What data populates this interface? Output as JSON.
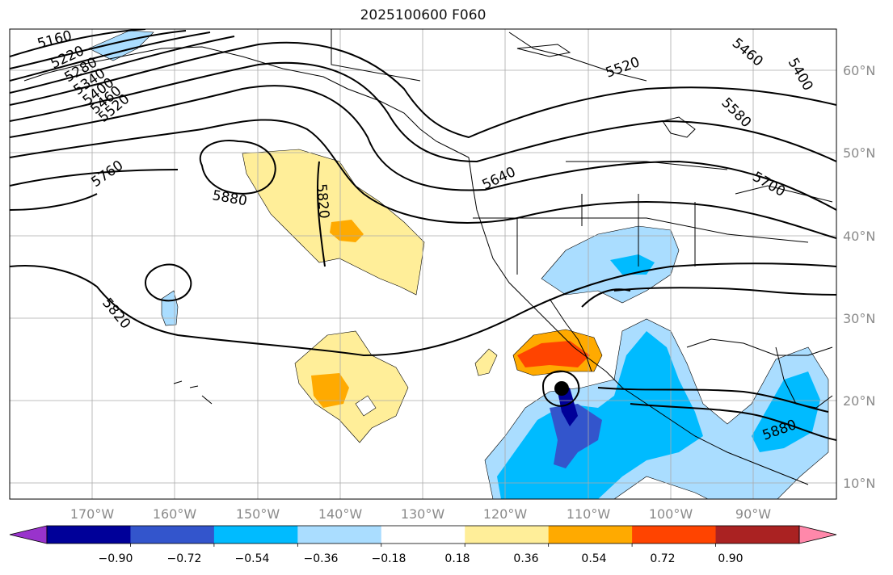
{
  "title": "2025100600 F060",
  "latitude_labels": [
    "60°N",
    "50°N",
    "40°N",
    "30°N",
    "20°N",
    "10°N"
  ],
  "longitude_labels": [
    "170°W",
    "160°W",
    "150°W",
    "140°W",
    "130°W",
    "120°W",
    "110°W",
    "100°W",
    "90°W"
  ],
  "contour_labels": [
    "5160",
    "5220",
    "5280",
    "5340",
    "5400",
    "5460",
    "5520",
    "5760",
    "5880",
    "5820",
    "5640",
    "5520",
    "5460",
    "5400",
    "5580",
    "5700",
    "5820",
    "5880"
  ],
  "colorbar": {
    "ticks": [
      "−0.90",
      "−0.72",
      "−0.54",
      "−0.36",
      "−0.18",
      "0.18",
      "0.36",
      "0.54",
      "0.72",
      "0.90"
    ],
    "colors": [
      "#9933cc",
      "#000099",
      "#3355cc",
      "#00bbff",
      "#aaddff",
      "#ffffff",
      "#ffee99",
      "#ffaa00",
      "#ff4400",
      "#aa2222",
      "#ff88aa"
    ]
  },
  "markers": {
    "low_center": "black-dot"
  }
}
